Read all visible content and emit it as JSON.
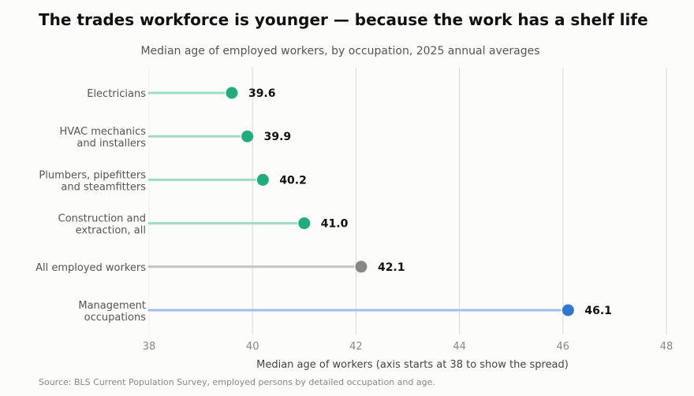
{
  "title": "The trades workforce is younger — because the work has a shelf life",
  "subtitle": "Median age of employed workers, by occupation, 2025 annual averages",
  "source": "Source: BLS Current Population Survey, employed persons by detailed occupation and age.",
  "chart_data": {
    "type": "lollipop",
    "xlabel": "Median age of workers  (axis starts at 38 to show the spread)",
    "xlim": [
      38,
      48
    ],
    "xticks": [
      "38",
      "40",
      "42",
      "44",
      "46",
      "48"
    ],
    "grid": true,
    "categories": [
      [
        "Electricians"
      ],
      [
        "HVAC mechanics",
        "and installers"
      ],
      [
        "Plumbers, pipefitters",
        "and steamfitters"
      ],
      [
        "Construction and",
        "extraction, all"
      ],
      [
        "All employed workers"
      ],
      [
        "Management",
        "occupations"
      ]
    ],
    "values": [
      39.6,
      39.9,
      40.2,
      41.0,
      42.1,
      46.1
    ],
    "value_labels": [
      "39.6",
      "39.9",
      "40.2",
      "41.0",
      "42.1",
      "46.1"
    ],
    "dot_colors": [
      "#22ab7d",
      "#22ab7d",
      "#22ab7d",
      "#22ab7d",
      "#888883",
      "#2f78d0"
    ],
    "stem_colors": [
      "#9fdcc6",
      "#9fdcc6",
      "#9fdcc6",
      "#9fdcc6",
      "#c4c4c1",
      "#a3bde6"
    ]
  }
}
